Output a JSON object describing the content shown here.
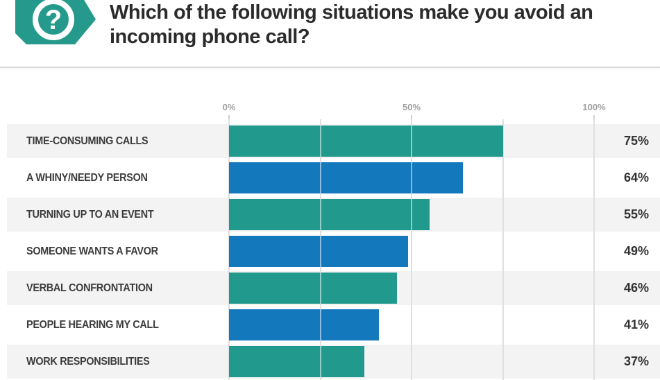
{
  "header": {
    "title": "Which of the following situations make you avoid an incoming phone call?",
    "icon": "question-mark-badge-icon"
  },
  "chart_data": {
    "type": "bar",
    "orientation": "horizontal",
    "title": "Which of the following situations make you avoid an incoming phone call?",
    "categories": [
      "TIME-CONSUMING CALLS",
      "A WHINY/NEEDY PERSON",
      "TURNING UP TO AN EVENT",
      "SOMEONE WANTS A FAVOR",
      "VERBAL CONFRONTATION",
      "PEOPLE HEARING MY CALL",
      "WORK RESPONSIBILITIES"
    ],
    "values": [
      75,
      64,
      55,
      49,
      46,
      41,
      37
    ],
    "value_labels": [
      "75%",
      "64%",
      "55%",
      "49%",
      "46%",
      "41%",
      "37%"
    ],
    "bar_colors": [
      "#219a8d",
      "#1478bd",
      "#219a8d",
      "#1478bd",
      "#219a8d",
      "#1478bd",
      "#219a8d"
    ],
    "xlabel": "",
    "ylabel": "",
    "xlim": [
      0,
      100
    ],
    "x_ticks": [
      {
        "label": "0%",
        "value": 0
      },
      {
        "label": "50%",
        "value": 50
      },
      {
        "label": "100%",
        "value": 100
      }
    ],
    "gridline_step_pct": 25,
    "grid": true,
    "legend_position": "none",
    "row_striping": "alternating"
  },
  "colors": {
    "bar_teal": "#219a8d",
    "bar_blue": "#1478bd",
    "icon_teal": "#259a8c",
    "icon_glyph": "#ffffff",
    "row_stripe": "#f3f3f3",
    "row_alt": "#ffffff",
    "gridline": "#dfdfdf",
    "axis_tick_text": "#9e9e9e",
    "title_text": "#2b2b2b",
    "category_text": "#3b3b3b",
    "value_text": "#333333",
    "divider": "#d9d9d9"
  }
}
